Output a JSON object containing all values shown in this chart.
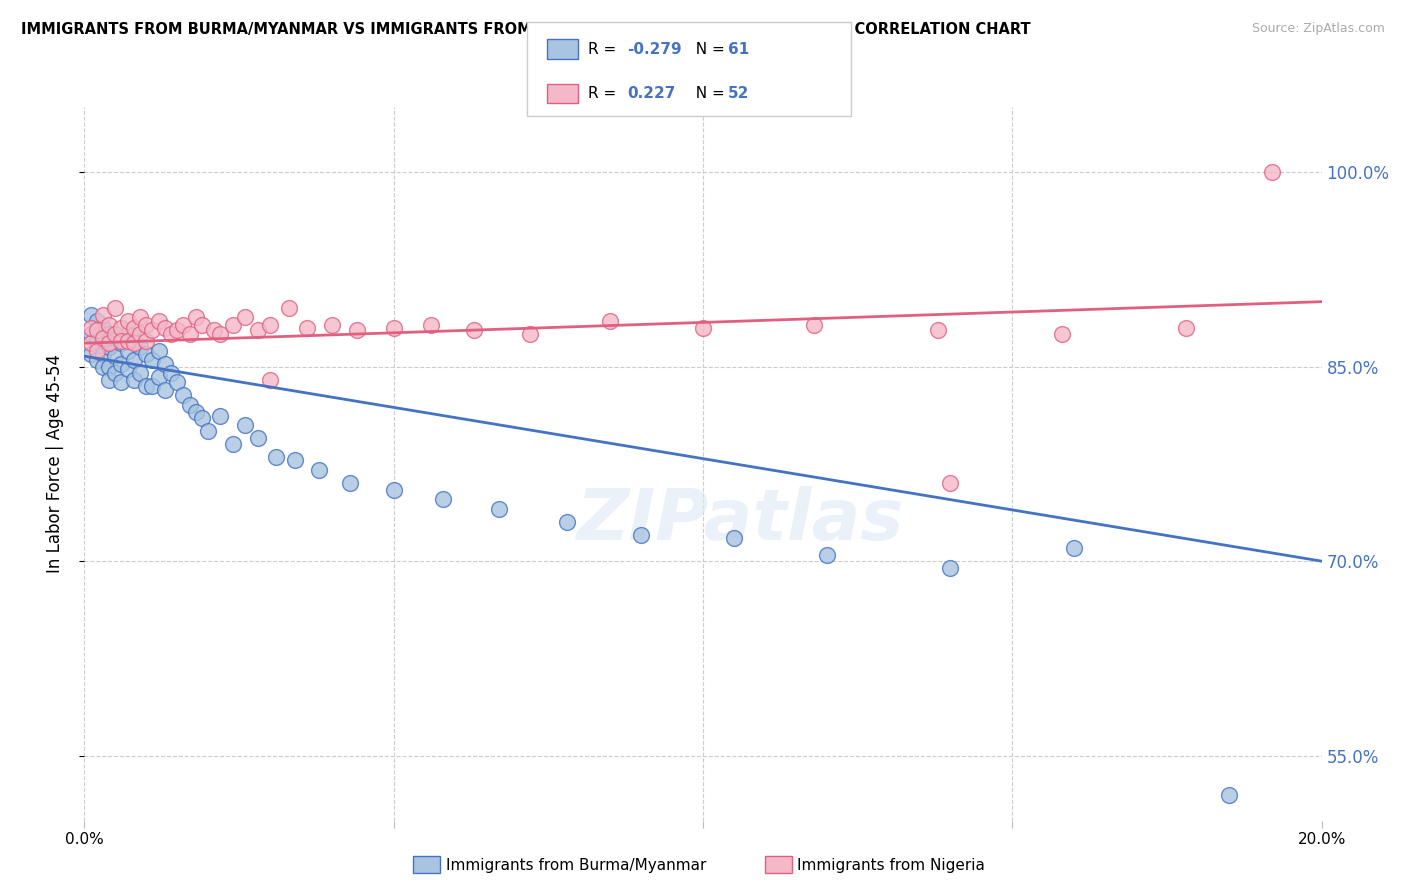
{
  "title": "IMMIGRANTS FROM BURMA/MYANMAR VS IMMIGRANTS FROM NIGERIA IN LABOR FORCE | AGE 45-54 CORRELATION CHART",
  "source": "Source: ZipAtlas.com",
  "ylabel": "In Labor Force | Age 45-54",
  "xlim": [
    0.0,
    0.2
  ],
  "ylim": [
    0.5,
    1.05
  ],
  "yticks": [
    0.55,
    0.7,
    0.85,
    1.0
  ],
  "ytick_labels": [
    "55.0%",
    "70.0%",
    "85.0%",
    "100.0%"
  ],
  "xticks": [
    0.0,
    0.05,
    0.1,
    0.15,
    0.2
  ],
  "xtick_labels": [
    "0.0%",
    "",
    "",
    "",
    "20.0%"
  ],
  "legend_blue_r": "-0.279",
  "legend_blue_n": "61",
  "legend_pink_r": "0.227",
  "legend_pink_n": "52",
  "legend_label_blue": "Immigrants from Burma/Myanmar",
  "legend_label_pink": "Immigrants from Nigeria",
  "blue_color": "#a8c4e0",
  "pink_color": "#f4b8c8",
  "blue_line_color": "#4472c4",
  "pink_line_color": "#e06080",
  "watermark": "ZIPatlas",
  "blue_x": [
    0.001,
    0.001,
    0.001,
    0.002,
    0.002,
    0.002,
    0.003,
    0.003,
    0.003,
    0.003,
    0.004,
    0.004,
    0.004,
    0.004,
    0.005,
    0.005,
    0.005,
    0.006,
    0.006,
    0.006,
    0.007,
    0.007,
    0.007,
    0.008,
    0.008,
    0.008,
    0.009,
    0.009,
    0.01,
    0.01,
    0.011,
    0.011,
    0.012,
    0.012,
    0.013,
    0.013,
    0.014,
    0.015,
    0.016,
    0.017,
    0.018,
    0.019,
    0.02,
    0.022,
    0.024,
    0.026,
    0.028,
    0.031,
    0.034,
    0.038,
    0.043,
    0.05,
    0.058,
    0.067,
    0.078,
    0.09,
    0.105,
    0.12,
    0.14,
    0.16,
    0.185
  ],
  "blue_y": [
    0.86,
    0.875,
    0.89,
    0.87,
    0.885,
    0.855,
    0.88,
    0.87,
    0.86,
    0.85,
    0.875,
    0.865,
    0.85,
    0.84,
    0.872,
    0.858,
    0.845,
    0.868,
    0.852,
    0.838,
    0.875,
    0.862,
    0.848,
    0.87,
    0.855,
    0.84,
    0.865,
    0.845,
    0.86,
    0.835,
    0.855,
    0.835,
    0.862,
    0.842,
    0.852,
    0.832,
    0.845,
    0.838,
    0.828,
    0.82,
    0.815,
    0.81,
    0.8,
    0.812,
    0.79,
    0.805,
    0.795,
    0.78,
    0.778,
    0.77,
    0.76,
    0.755,
    0.748,
    0.74,
    0.73,
    0.72,
    0.718,
    0.705,
    0.695,
    0.71,
    0.52
  ],
  "pink_x": [
    0.001,
    0.001,
    0.002,
    0.002,
    0.003,
    0.003,
    0.004,
    0.004,
    0.005,
    0.005,
    0.006,
    0.006,
    0.007,
    0.007,
    0.008,
    0.008,
    0.009,
    0.009,
    0.01,
    0.01,
    0.011,
    0.012,
    0.013,
    0.014,
    0.015,
    0.016,
    0.017,
    0.018,
    0.019,
    0.021,
    0.022,
    0.024,
    0.026,
    0.028,
    0.03,
    0.033,
    0.036,
    0.04,
    0.044,
    0.05,
    0.056,
    0.063,
    0.072,
    0.085,
    0.1,
    0.118,
    0.138,
    0.158,
    0.178,
    0.192,
    0.03,
    0.14
  ],
  "pink_y": [
    0.868,
    0.88,
    0.878,
    0.862,
    0.89,
    0.872,
    0.882,
    0.868,
    0.875,
    0.895,
    0.88,
    0.87,
    0.885,
    0.87,
    0.88,
    0.868,
    0.875,
    0.888,
    0.882,
    0.87,
    0.878,
    0.885,
    0.88,
    0.875,
    0.878,
    0.882,
    0.875,
    0.888,
    0.882,
    0.878,
    0.875,
    0.882,
    0.888,
    0.878,
    0.882,
    0.895,
    0.88,
    0.882,
    0.878,
    0.88,
    0.882,
    0.878,
    0.875,
    0.885,
    0.88,
    0.882,
    0.878,
    0.875,
    0.88,
    1.0,
    0.84,
    0.76
  ]
}
